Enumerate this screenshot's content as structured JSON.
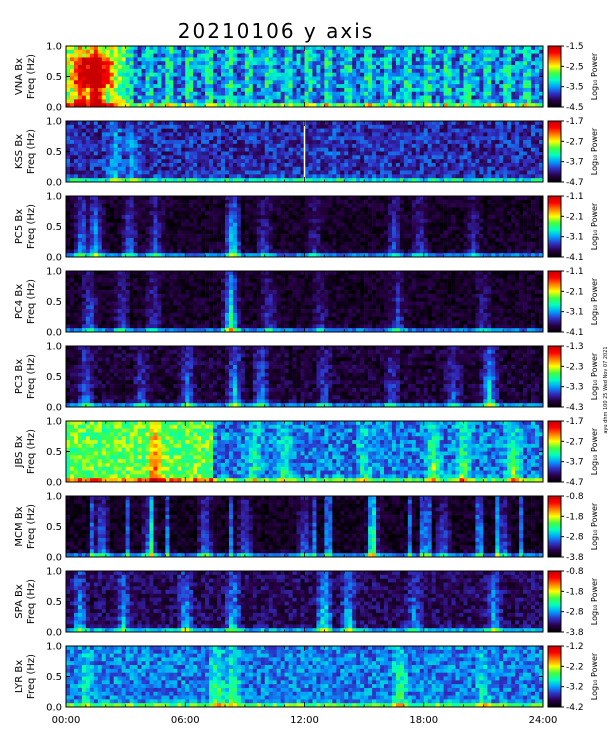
{
  "figure": {
    "title": "20210106 y axis",
    "stamp": "ayu dhm 100 25 Wed Nov 07 2021"
  },
  "chart_data": {
    "type": "heatmap",
    "xlabel": "",
    "x_ticks": [
      "00:00",
      "06:00",
      "12:00",
      "18:00",
      "24:00"
    ],
    "xlim_hours": [
      0,
      24
    ],
    "ylim": [
      0.0,
      1.0
    ],
    "y_ticks": [
      "0.0",
      "0.5",
      "1.0"
    ],
    "colorbar_label": "Log₁₀ Power",
    "colormap": [
      "#000000",
      "#2a004a",
      "#3030c8",
      "#00a0ff",
      "#00ffc0",
      "#40ff40",
      "#ffff00",
      "#ff8000",
      "#ff0000",
      "#c80000"
    ],
    "panels": [
      {
        "station": "VNA",
        "ylabel1": "VNA Bx",
        "ylabel2": "Freq (Hz)",
        "cbar_ticks": [
          "-1.5",
          "-2.5",
          "-3.5",
          "-4.5"
        ],
        "base": 0.35,
        "noise": 0.28,
        "stripes": true,
        "bright_until": 3.0,
        "events": [
          [
            1.5,
            0.55
          ],
          [
            0.8,
            0.35
          ]
        ]
      },
      {
        "station": "KSS",
        "ylabel1": "KSS Bx",
        "ylabel2": "Freq (Hz)",
        "cbar_ticks": [
          "-1.7",
          "-2.7",
          "-3.7",
          "-4.7"
        ],
        "base": 0.2,
        "noise": 0.2,
        "gap_hour": 12.0,
        "events": [
          [
            2.5,
            0.2
          ],
          [
            3.3,
            0.15
          ],
          [
            13.5,
            0.05
          ]
        ]
      },
      {
        "station": "PC5",
        "ylabel1": "PC5 Bx",
        "ylabel2": "Freq (Hz)",
        "cbar_ticks": [
          "-1.1",
          "-2.1",
          "-3.1",
          "-4.1"
        ],
        "base": 0.06,
        "noise": 0.12,
        "events": [
          [
            0.8,
            0.3
          ],
          [
            1.5,
            0.35
          ],
          [
            3.2,
            0.25
          ],
          [
            4.5,
            0.2
          ],
          [
            8.4,
            0.45
          ],
          [
            10.0,
            0.2
          ],
          [
            12.5,
            0.15
          ],
          [
            16.5,
            0.2
          ],
          [
            17.8,
            0.2
          ],
          [
            20.5,
            0.15
          ]
        ]
      },
      {
        "station": "PC4",
        "ylabel1": "PC4 Bx",
        "ylabel2": "Freq (Hz)",
        "cbar_ticks": [
          "-1.1",
          "-2.1",
          "-3.1",
          "-4.1"
        ],
        "base": 0.06,
        "noise": 0.12,
        "events": [
          [
            1.2,
            0.25
          ],
          [
            2.8,
            0.2
          ],
          [
            4.4,
            0.2
          ],
          [
            8.3,
            0.5
          ],
          [
            10.2,
            0.2
          ],
          [
            12.8,
            0.15
          ],
          [
            16.7,
            0.2
          ],
          [
            21.0,
            0.15
          ]
        ]
      },
      {
        "station": "PC3",
        "ylabel1": "PC3 Bx",
        "ylabel2": "Freq (Hz)",
        "cbar_ticks": [
          "-1.3",
          "-2.3",
          "-3.3",
          "-4.3"
        ],
        "base": 0.08,
        "noise": 0.14,
        "events": [
          [
            1.0,
            0.25
          ],
          [
            3.8,
            0.2
          ],
          [
            6.1,
            0.25
          ],
          [
            8.5,
            0.35
          ],
          [
            9.8,
            0.3
          ],
          [
            13.0,
            0.2
          ],
          [
            16.4,
            0.2
          ],
          [
            19.5,
            0.2
          ],
          [
            21.3,
            0.4
          ]
        ]
      },
      {
        "station": "JBS",
        "ylabel1": "JBS Bx",
        "ylabel2": "Freq (Hz)",
        "cbar_ticks": [
          "-1.7",
          "-2.7",
          "-3.7",
          "-4.7"
        ],
        "base": 0.3,
        "noise": 0.22,
        "bright_until": 7.3,
        "events": [
          [
            4.5,
            0.3
          ],
          [
            9.5,
            0.2
          ],
          [
            11.0,
            0.2
          ],
          [
            15.0,
            0.2
          ],
          [
            18.5,
            0.3
          ],
          [
            20.0,
            0.3
          ],
          [
            22.5,
            0.3
          ]
        ]
      },
      {
        "station": "MCM",
        "ylabel1": "MCM Bx",
        "ylabel2": "Freq (Hz)",
        "cbar_ticks": [
          "-0.8",
          "-1.8",
          "-2.8",
          "-3.8"
        ],
        "base": 0.05,
        "noise": 0.12,
        "spiky": true,
        "events": [
          [
            1.8,
            0.3
          ],
          [
            4.2,
            0.3
          ],
          [
            7.0,
            0.3
          ],
          [
            9.0,
            0.25
          ],
          [
            12.0,
            0.25
          ],
          [
            15.5,
            0.25
          ],
          [
            19.0,
            0.25
          ],
          [
            22.0,
            0.25
          ]
        ]
      },
      {
        "station": "SPA",
        "ylabel1": "SPA Bx",
        "ylabel2": "Freq (Hz)",
        "cbar_ticks": [
          "-0.8",
          "-1.8",
          "-2.8",
          "-3.8"
        ],
        "base": 0.12,
        "noise": 0.16,
        "events": [
          [
            0.7,
            0.25
          ],
          [
            2.9,
            0.25
          ],
          [
            6.0,
            0.3
          ],
          [
            8.4,
            0.3
          ],
          [
            13.0,
            0.4
          ],
          [
            14.2,
            0.3
          ],
          [
            17.5,
            0.2
          ],
          [
            21.5,
            0.25
          ]
        ]
      },
      {
        "station": "LYR",
        "ylabel1": "LYR Bx",
        "ylabel2": "Freq (Hz)",
        "cbar_ticks": [
          "-1.2",
          "-2.2",
          "-3.2",
          "-4.2"
        ],
        "base": 0.3,
        "noise": 0.2,
        "events": [
          [
            1.0,
            0.15
          ],
          [
            7.6,
            0.3
          ],
          [
            8.4,
            0.25
          ],
          [
            16.8,
            0.25
          ],
          [
            21.0,
            0.15
          ]
        ]
      }
    ]
  }
}
